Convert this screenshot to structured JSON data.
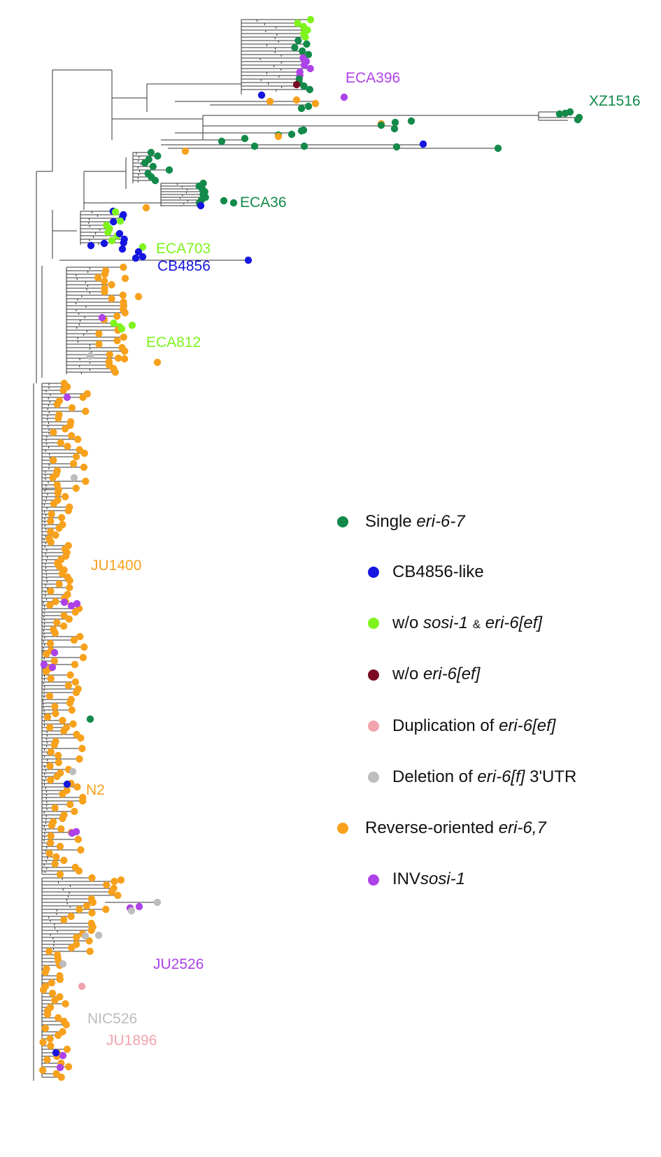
{
  "colors": {
    "single": "#138a4a",
    "cb4856": "#1616e0",
    "wo_sosi": "#7ef41c",
    "wo_eri": "#7a0b22",
    "dup": "#f1a4ad",
    "del": "#bdbdbd",
    "rev": "#f7a11c",
    "inv": "#ad42e8"
  },
  "strain_labels": [
    {
      "text": "ECA396",
      "group": "inv"
    },
    {
      "text": "XZ1516",
      "group": "single"
    },
    {
      "text": "ECA36",
      "group": "single"
    },
    {
      "text": "ECA703",
      "group": "wo_sosi"
    },
    {
      "text": "CB4856",
      "group": "cb4856"
    },
    {
      "text": "ECA812",
      "group": "wo_sosi"
    },
    {
      "text": "JU1400",
      "group": "rev"
    },
    {
      "text": "N2",
      "group": "rev"
    },
    {
      "text": "JU2526",
      "group": "inv"
    },
    {
      "text": "NIC526",
      "group": "del"
    },
    {
      "text": "JU1896",
      "group": "dup"
    }
  ],
  "legend": [
    {
      "group": "single",
      "prefix": "Single ",
      "italic": "eri-6-7",
      "suffix": ""
    },
    {
      "group": "cb4856",
      "prefix": "CB4856-like",
      "italic": "",
      "suffix": ""
    },
    {
      "group": "wo_sosi",
      "prefix": "w/o ",
      "italic": "sosi-1",
      "amp": "&",
      "italic2": "eri-6[ef]",
      "suffix": ""
    },
    {
      "group": "wo_eri",
      "prefix": "w/o ",
      "italic": "eri-6[ef]",
      "suffix": ""
    },
    {
      "group": "dup",
      "prefix": "Duplication of ",
      "italic": "eri-6[ef]",
      "suffix": ""
    },
    {
      "group": "del",
      "prefix": "Deletion of ",
      "italic": "eri-6[f]",
      "suffix": " 3'UTR"
    },
    {
      "group": "rev",
      "prefix": "Reverse-oriented ",
      "italic": "eri-6,7",
      "suffix": ""
    },
    {
      "group": "inv",
      "prefix": "INV",
      "italic": "sosi-1",
      "suffix": ""
    }
  ]
}
